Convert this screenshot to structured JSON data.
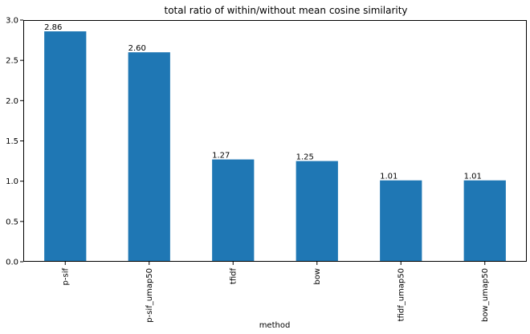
{
  "chart_data": {
    "type": "bar",
    "title": "total ratio of within/without mean cosine similarity",
    "xlabel": "method",
    "ylabel": "",
    "categories": [
      "p-sif",
      "p-sif_umap50",
      "tfidf",
      "bow",
      "tfidf_umap50",
      "bow_umap50"
    ],
    "values": [
      2.86,
      2.6,
      1.27,
      1.25,
      1.01,
      1.01
    ],
    "data_labels": [
      "2.86",
      "2.60",
      "1.27",
      "1.25",
      "1.01",
      "1.01"
    ],
    "ylim": [
      0,
      3.0
    ],
    "yticks": [
      0.0,
      0.5,
      1.0,
      1.5,
      2.0,
      2.5,
      3.0
    ],
    "ytick_labels": [
      "0.0",
      "0.5",
      "1.0",
      "1.5",
      "2.0",
      "2.5",
      "3.0"
    ],
    "bar_color": "#1f77b4",
    "grid": false,
    "legend": "none"
  }
}
